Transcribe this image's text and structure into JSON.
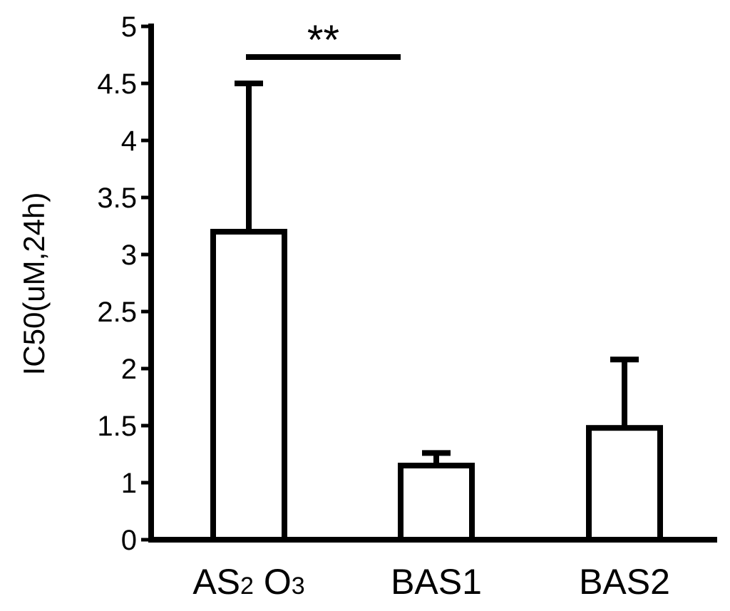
{
  "chart_data": {
    "type": "bar",
    "categories": [
      {
        "base": "AS",
        "sub1": "2",
        "mid": " O",
        "sub2": "3"
      },
      {
        "base": "BAS1",
        "sub1": "",
        "mid": "",
        "sub2": ""
      },
      {
        "base": "BAS2",
        "sub1": "",
        "mid": "",
        "sub2": ""
      }
    ],
    "values": [
      3.2,
      1.15,
      1.48
    ],
    "error_upper": [
      4.5,
      1.26,
      2.08
    ],
    "title": "",
    "xlabel": "",
    "ylabel": "IC50(uM,24h)",
    "ylim": [
      0,
      5
    ],
    "yticks": [
      {
        "value": 0,
        "label": "0"
      },
      {
        "value": 1,
        "label": "1"
      },
      {
        "value": 1.5,
        "label": "1.5"
      },
      {
        "value": 2,
        "label": "2"
      },
      {
        "value": 2.5,
        "label": "2.5"
      },
      {
        "value": 3,
        "label": "3"
      },
      {
        "value": 3.5,
        "label": "3.5"
      },
      {
        "value": 4,
        "label": "4"
      },
      {
        "value": 4.5,
        "label": "4.5"
      },
      {
        "value": 5,
        "label": "5"
      }
    ],
    "significance": {
      "label": "**",
      "from_category": 0,
      "to_category": 1
    },
    "bar_fill": "#ffffff",
    "stroke_color": "#000000",
    "grid": false,
    "legend": "none"
  }
}
